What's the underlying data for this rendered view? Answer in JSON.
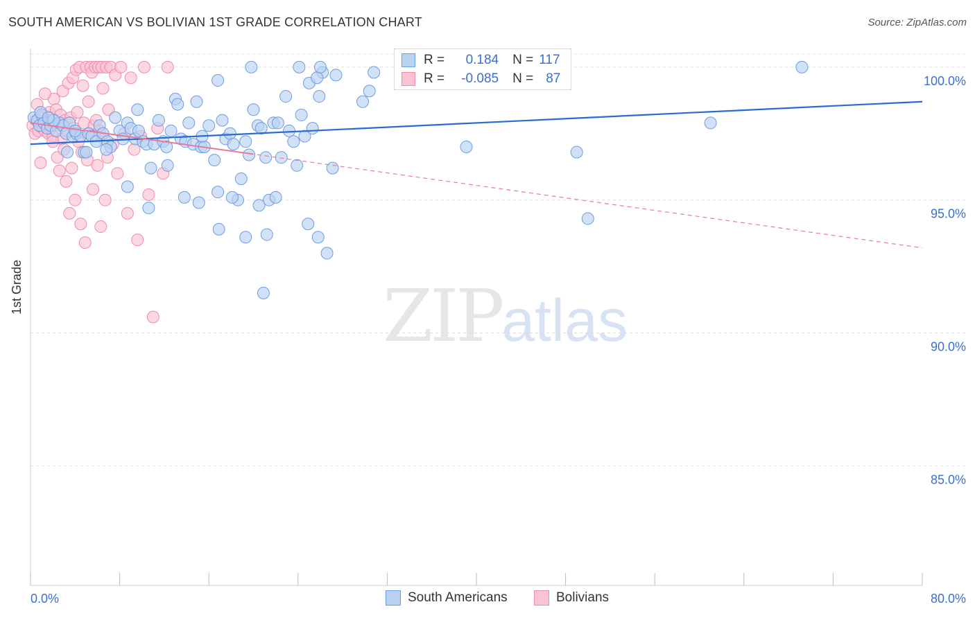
{
  "title": "SOUTH AMERICAN VS BOLIVIAN 1ST GRADE CORRELATION CHART",
  "source": "Source: ZipAtlas.com",
  "watermark": {
    "zip": "ZIP",
    "atlas": "atlas"
  },
  "legend": {
    "r_label": "R =",
    "n_label": "N =",
    "rows": [
      {
        "name": "South Americans",
        "r": "0.184",
        "n": "117",
        "fill": "#b9d2f2",
        "stroke": "#6f9be0"
      },
      {
        "name": "Bolivians",
        "r": "-0.085",
        "n": "87",
        "fill": "#f9c3d2",
        "stroke": "#ef8bab"
      }
    ]
  },
  "chart_data": {
    "type": "scatter",
    "title": "SOUTH AMERICAN VS BOLIVIAN 1ST GRADE CORRELATION CHART",
    "xlabel": "",
    "ylabel": "1st Grade",
    "xlim": [
      0,
      80
    ],
    "ylim": [
      80.5,
      100.7
    ],
    "x_tick_labels": [
      "0.0%",
      "80.0%"
    ],
    "y_ticks": [
      100,
      95,
      90,
      85
    ],
    "y_tick_labels": [
      "100.0%",
      "95.0%",
      "90.0%",
      "85.0%"
    ],
    "grid": true,
    "series": [
      {
        "name": "South Americans",
        "color": "#6f9be0",
        "fill": "#b9d2f2",
        "trend": {
          "x": [
            0,
            80
          ],
          "y": [
            97.1,
            98.7
          ],
          "style": "solid",
          "color": "#2a6bd0"
        },
        "points": [
          [
            0.3,
            98.1
          ],
          [
            0.6,
            98.0
          ],
          [
            0.8,
            97.8
          ],
          [
            1.0,
            98.2
          ],
          [
            1.2,
            97.9
          ],
          [
            1.5,
            97.7
          ],
          [
            1.8,
            97.8
          ],
          [
            2.0,
            98.0
          ],
          [
            2.3,
            97.6
          ],
          [
            2.6,
            97.9
          ],
          [
            2.9,
            97.8
          ],
          [
            3.2,
            97.5
          ],
          [
            3.5,
            97.9
          ],
          [
            3.8,
            97.4
          ],
          [
            4.1,
            97.5
          ],
          [
            4.5,
            97.4
          ],
          [
            4.8,
            96.8
          ],
          [
            5.2,
            97.5
          ],
          [
            5.5,
            97.4
          ],
          [
            5.9,
            97.2
          ],
          [
            6.2,
            97.8
          ],
          [
            6.5,
            97.5
          ],
          [
            6.9,
            97.2
          ],
          [
            7.2,
            97.0
          ],
          [
            7.6,
            98.1
          ],
          [
            8.0,
            97.6
          ],
          [
            8.3,
            97.3
          ],
          [
            8.7,
            97.9
          ],
          [
            9.0,
            97.7
          ],
          [
            9.4,
            97.3
          ],
          [
            9.7,
            97.6
          ],
          [
            10.1,
            97.2
          ],
          [
            10.4,
            97.1
          ],
          [
            10.8,
            96.2
          ],
          [
            11.1,
            97.1
          ],
          [
            11.5,
            98.0
          ],
          [
            11.9,
            97.2
          ],
          [
            12.2,
            97.0
          ],
          [
            12.6,
            97.6
          ],
          [
            13.0,
            98.8
          ],
          [
            13.2,
            98.6
          ],
          [
            13.5,
            97.3
          ],
          [
            13.9,
            97.2
          ],
          [
            14.2,
            97.9
          ],
          [
            14.6,
            97.1
          ],
          [
            14.9,
            98.7
          ],
          [
            15.3,
            97.0
          ],
          [
            15.6,
            97.0
          ],
          [
            16.0,
            97.8
          ],
          [
            16.5,
            96.5
          ],
          [
            16.8,
            95.3
          ],
          [
            17.2,
            98.0
          ],
          [
            17.5,
            97.3
          ],
          [
            17.9,
            97.5
          ],
          [
            18.2,
            97.1
          ],
          [
            18.6,
            95.0
          ],
          [
            18.9,
            95.8
          ],
          [
            19.3,
            97.2
          ],
          [
            19.6,
            96.7
          ],
          [
            20.0,
            98.4
          ],
          [
            20.4,
            97.8
          ],
          [
            20.7,
            97.7
          ],
          [
            21.1,
            96.6
          ],
          [
            21.4,
            95.0
          ],
          [
            21.8,
            97.9
          ],
          [
            22.2,
            97.9
          ],
          [
            22.5,
            96.6
          ],
          [
            22.9,
            98.9
          ],
          [
            23.2,
            97.6
          ],
          [
            23.6,
            97.2
          ],
          [
            23.9,
            96.3
          ],
          [
            24.3,
            98.2
          ],
          [
            24.6,
            97.4
          ],
          [
            25.0,
            99.4
          ],
          [
            25.3,
            97.7
          ],
          [
            25.8,
            93.6
          ],
          [
            26.2,
            99.8
          ],
          [
            27.1,
            96.2
          ],
          [
            29.8,
            98.7
          ],
          [
            30.4,
            99.1
          ],
          [
            39.1,
            97.0
          ],
          [
            49.0,
            96.8
          ],
          [
            50.0,
            94.3
          ],
          [
            61.0,
            97.9
          ],
          [
            69.2,
            100.0
          ],
          [
            8.7,
            95.5
          ],
          [
            9.6,
            98.4
          ],
          [
            10.6,
            94.7
          ],
          [
            12.3,
            96.3
          ],
          [
            13.8,
            95.1
          ],
          [
            15.1,
            94.9
          ],
          [
            16.9,
            93.9
          ],
          [
            18.1,
            95.1
          ],
          [
            19.3,
            93.6
          ],
          [
            20.5,
            94.8
          ],
          [
            22.0,
            95.1
          ],
          [
            26.6,
            93.0
          ],
          [
            24.9,
            94.1
          ],
          [
            20.9,
            91.5
          ],
          [
            21.2,
            93.7
          ],
          [
            25.7,
            99.6
          ],
          [
            26.0,
            100.0
          ],
          [
            25.9,
            98.9
          ],
          [
            27.4,
            99.7
          ],
          [
            30.8,
            99.8
          ],
          [
            24.1,
            100.0
          ],
          [
            19.8,
            100.0
          ],
          [
            16.8,
            99.5
          ],
          [
            15.4,
            97.4
          ],
          [
            5.0,
            96.8
          ],
          [
            3.3,
            96.8
          ],
          [
            2.1,
            98.0
          ],
          [
            0.9,
            98.3
          ],
          [
            1.6,
            98.1
          ],
          [
            4.0,
            97.6
          ],
          [
            6.8,
            96.9
          ]
        ]
      },
      {
        "name": "Bolivians",
        "color": "#ef8bab",
        "fill": "#f9c3d2",
        "trend": {
          "x": [
            0,
            80
          ],
          "y": [
            97.9,
            93.2
          ],
          "style": "dashed",
          "color": "#e77a9c"
        },
        "points": [
          [
            0.2,
            97.8
          ],
          [
            0.4,
            97.5
          ],
          [
            0.5,
            98.0
          ],
          [
            0.7,
            97.6
          ],
          [
            0.8,
            98.1
          ],
          [
            1.0,
            97.9
          ],
          [
            1.1,
            97.7
          ],
          [
            1.2,
            98.2
          ],
          [
            1.3,
            97.6
          ],
          [
            1.4,
            98.0
          ],
          [
            1.5,
            97.8
          ],
          [
            1.6,
            97.5
          ],
          [
            1.7,
            98.3
          ],
          [
            1.8,
            97.7
          ],
          [
            1.9,
            98.1
          ],
          [
            2.0,
            97.4
          ],
          [
            2.1,
            98.8
          ],
          [
            2.2,
            97.9
          ],
          [
            2.3,
            98.4
          ],
          [
            2.4,
            96.6
          ],
          [
            2.5,
            97.8
          ],
          [
            2.6,
            96.1
          ],
          [
            2.7,
            98.2
          ],
          [
            2.8,
            97.3
          ],
          [
            2.9,
            99.1
          ],
          [
            3.0,
            96.9
          ],
          [
            3.1,
            98.0
          ],
          [
            3.2,
            95.7
          ],
          [
            3.3,
            97.6
          ],
          [
            3.4,
            99.4
          ],
          [
            3.5,
            94.5
          ],
          [
            3.6,
            98.1
          ],
          [
            3.7,
            96.2
          ],
          [
            3.8,
            99.6
          ],
          [
            3.9,
            97.7
          ],
          [
            4.0,
            95.0
          ],
          [
            4.1,
            99.9
          ],
          [
            4.2,
            98.3
          ],
          [
            4.3,
            97.2
          ],
          [
            4.4,
            100.0
          ],
          [
            4.5,
            94.1
          ],
          [
            4.6,
            96.8
          ],
          [
            4.7,
            99.3
          ],
          [
            4.8,
            97.9
          ],
          [
            4.9,
            93.4
          ],
          [
            5.0,
            100.0
          ],
          [
            5.1,
            96.5
          ],
          [
            5.2,
            98.7
          ],
          [
            5.3,
            97.5
          ],
          [
            5.4,
            100.0
          ],
          [
            5.5,
            99.8
          ],
          [
            5.6,
            95.4
          ],
          [
            5.7,
            97.8
          ],
          [
            5.8,
            100.0
          ],
          [
            5.9,
            98.0
          ],
          [
            6.0,
            96.3
          ],
          [
            6.1,
            100.0
          ],
          [
            6.2,
            97.6
          ],
          [
            6.3,
            94.0
          ],
          [
            6.4,
            100.0
          ],
          [
            6.5,
            99.2
          ],
          [
            6.6,
            97.3
          ],
          [
            6.7,
            95.0
          ],
          [
            6.8,
            100.0
          ],
          [
            6.9,
            96.6
          ],
          [
            7.0,
            98.4
          ],
          [
            7.2,
            100.0
          ],
          [
            7.4,
            97.1
          ],
          [
            7.6,
            99.7
          ],
          [
            7.8,
            96.0
          ],
          [
            8.1,
            100.0
          ],
          [
            8.4,
            97.5
          ],
          [
            8.7,
            94.5
          ],
          [
            9.0,
            99.6
          ],
          [
            9.3,
            96.9
          ],
          [
            9.6,
            93.5
          ],
          [
            9.9,
            97.4
          ],
          [
            10.2,
            100.0
          ],
          [
            10.6,
            95.2
          ],
          [
            11.0,
            90.6
          ],
          [
            11.4,
            97.7
          ],
          [
            11.9,
            96.0
          ],
          [
            12.3,
            100.0
          ],
          [
            0.6,
            98.6
          ],
          [
            1.3,
            99.0
          ],
          [
            2.0,
            97.2
          ],
          [
            0.9,
            96.4
          ]
        ]
      }
    ]
  }
}
